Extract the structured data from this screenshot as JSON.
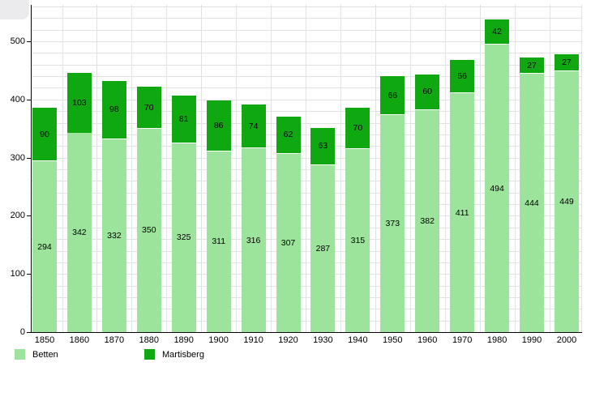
{
  "chart_data": {
    "type": "bar",
    "stacked": true,
    "title": "",
    "xlabel": "",
    "ylabel": "",
    "categories": [
      "1850",
      "1860",
      "1870",
      "1880",
      "1890",
      "1900",
      "1910",
      "1920",
      "1930",
      "1940",
      "1950",
      "1960",
      "1970",
      "1980",
      "1990",
      "2000"
    ],
    "series": [
      {
        "name": "Betten",
        "color": "#9ce49c",
        "values": [
          294,
          342,
          332,
          350,
          325,
          311,
          316,
          307,
          287,
          315,
          373,
          382,
          411,
          494,
          444,
          449
        ]
      },
      {
        "name": "Martisberg",
        "color": "#10a810",
        "values": [
          90,
          103,
          98,
          70,
          81,
          86,
          74,
          62,
          63,
          70,
          66,
          60,
          56,
          42,
          27,
          27
        ]
      }
    ],
    "yticks": [
      0,
      100,
      200,
      300,
      400,
      500
    ],
    "ylim": [
      0,
      563
    ],
    "minor_grid_step": 20,
    "grid": true,
    "legend_position": "bottom-left",
    "value_labels": "inside-segments",
    "label_color": "#000000",
    "gridline_color": "#e2e2e2",
    "axis_color": "#000000"
  }
}
